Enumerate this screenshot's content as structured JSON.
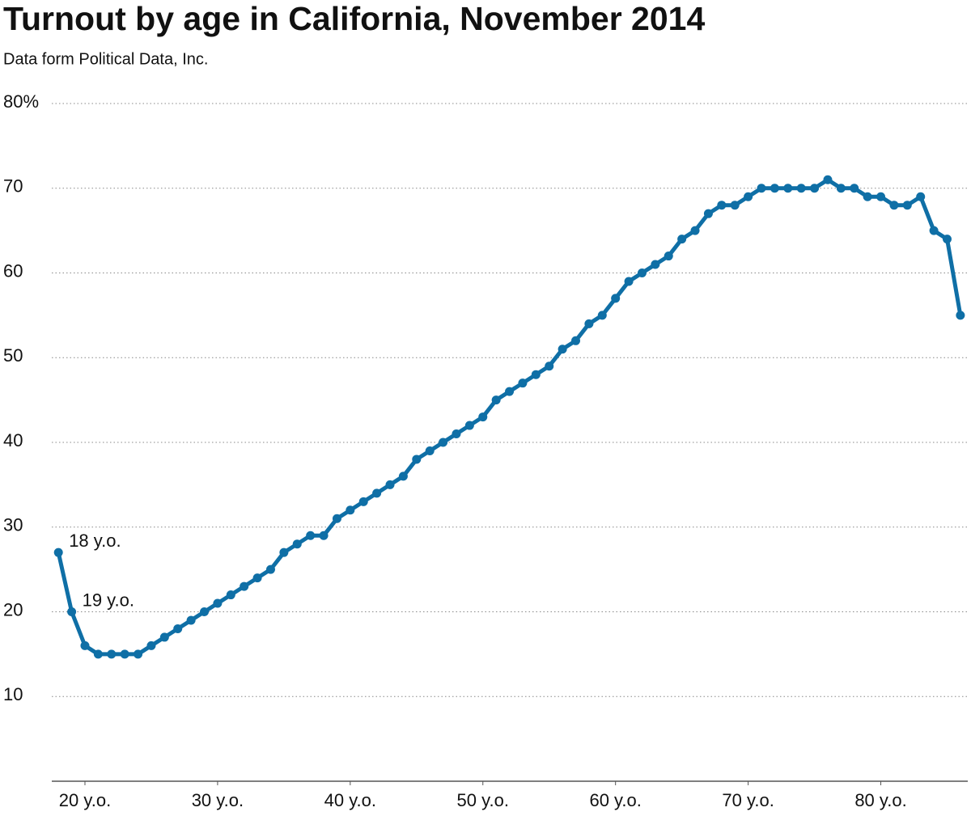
{
  "chart_data": {
    "type": "line",
    "title": "Turnout by age in California, November 2014",
    "subtitle": "Data form Political Data, Inc.",
    "x": [
      18,
      19,
      20,
      21,
      22,
      23,
      24,
      25,
      26,
      27,
      28,
      29,
      30,
      31,
      32,
      33,
      34,
      35,
      36,
      37,
      38,
      39,
      40,
      41,
      42,
      43,
      44,
      45,
      46,
      47,
      48,
      49,
      50,
      51,
      52,
      53,
      54,
      55,
      56,
      57,
      58,
      59,
      60,
      61,
      62,
      63,
      64,
      65,
      66,
      67,
      68,
      69,
      70,
      71,
      72,
      73,
      74,
      75,
      76,
      77,
      78,
      79,
      80,
      81,
      82,
      83,
      84,
      85,
      86
    ],
    "series": [
      {
        "name": "Turnout",
        "color": "#0f6fa6",
        "values": [
          27,
          20,
          16,
          15,
          15,
          15,
          15,
          16,
          17,
          18,
          19,
          20,
          21,
          22,
          23,
          24,
          25,
          27,
          28,
          29,
          29,
          31,
          32,
          33,
          34,
          35,
          36,
          38,
          39,
          40,
          41,
          42,
          43,
          45,
          46,
          47,
          48,
          49,
          51,
          52,
          54,
          55,
          57,
          59,
          60,
          61,
          62,
          64,
          65,
          67,
          68,
          68,
          69,
          70,
          70,
          70,
          70,
          70,
          71,
          70,
          70,
          69,
          69,
          68,
          68,
          69,
          65,
          64,
          55
        ]
      }
    ],
    "xlim": [
      17.5,
      86.8
    ],
    "ylim": [
      0,
      80
    ],
    "xticks": [
      {
        "value": 20,
        "label": "20 y.o."
      },
      {
        "value": 30,
        "label": "30 y.o."
      },
      {
        "value": 40,
        "label": "40 y.o."
      },
      {
        "value": 50,
        "label": "50 y.o."
      },
      {
        "value": 60,
        "label": "60 y.o."
      },
      {
        "value": 70,
        "label": "70 y.o."
      },
      {
        "value": 80,
        "label": "80 y.o."
      }
    ],
    "yticks": [
      10,
      20,
      30,
      40,
      50,
      60,
      70,
      {
        "value": 80,
        "label": "80%"
      }
    ],
    "grid": true,
    "annotations": [
      {
        "text": "18 y.o.",
        "x": 18
      },
      {
        "text": "19 y.o.",
        "x": 19
      }
    ]
  }
}
